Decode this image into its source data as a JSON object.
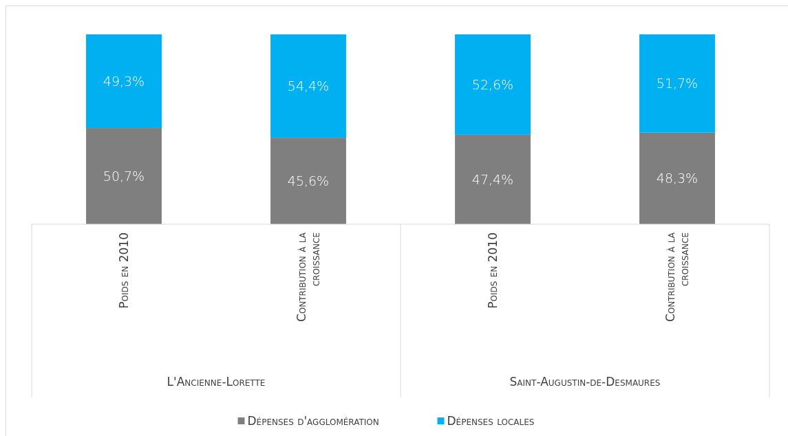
{
  "chart_data": {
    "type": "bar",
    "stacked": true,
    "categories": [
      "Poids en 2010",
      "Contribution à la croissance",
      "Poids en 2010",
      "Contribution à la croissance"
    ],
    "series": [
      {
        "name": "Dépenses d'agglomération",
        "color": "#7f7f7f",
        "values": [
          50.7,
          45.6,
          47.4,
          48.3
        ],
        "value_labels": [
          "50,7%",
          "45,6%",
          "47,4%",
          "48,3%"
        ]
      },
      {
        "name": "Dépenses locales",
        "color": "#00b0f0",
        "values": [
          49.3,
          54.4,
          52.6,
          51.7
        ],
        "value_labels": [
          "49,3%",
          "54,4%",
          "52,6%",
          "51,7%"
        ]
      }
    ],
    "annotations": [
      "L'Ancienne-Lorette",
      "Saint-Augustin-de-Desmaures"
    ],
    "legend": "bottom"
  }
}
